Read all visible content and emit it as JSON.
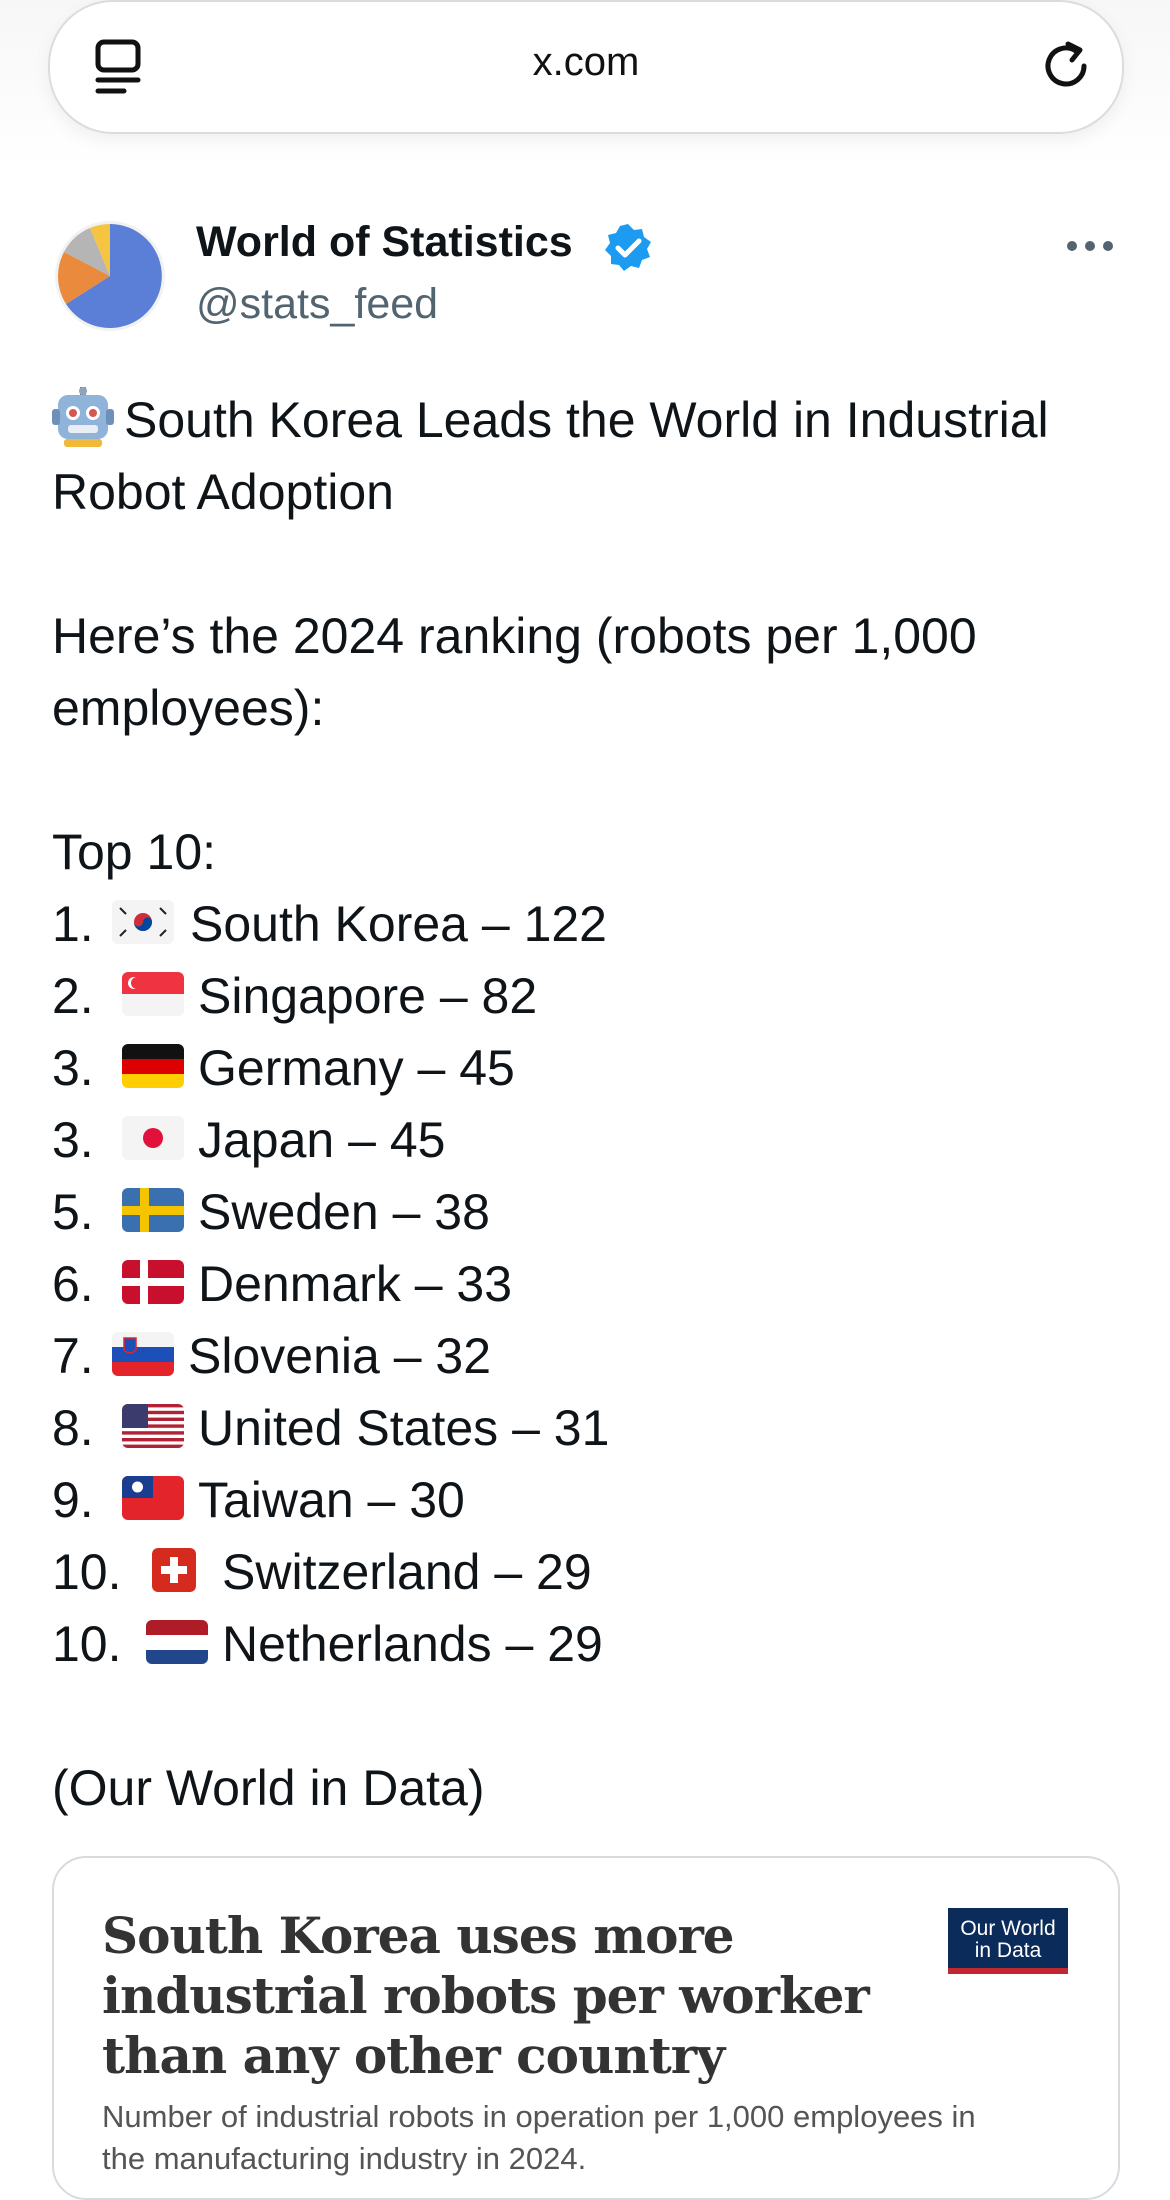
{
  "browser": {
    "url": "x.com"
  },
  "tweet": {
    "author_name": "World of Statistics",
    "handle": "@stats_feed",
    "headline_line1": "South Korea Leads the World in Industrial",
    "headline_line2": "Robot Adoption",
    "intro_line1": "Here’s the 2024 ranking (robots per 1,000",
    "intro_line2": "employees):",
    "list_title": "Top 10:",
    "ranking": [
      {
        "rank": "1.",
        "text": "South Korea – 122",
        "flag": "south-korea-flag"
      },
      {
        "rank": "2.",
        "text": "Singapore – 82",
        "flag": "singapore-flag"
      },
      {
        "rank": "3.",
        "text": "Germany – 45",
        "flag": "germany-flag"
      },
      {
        "rank": "3.",
        "text": "Japan – 45",
        "flag": "japan-flag"
      },
      {
        "rank": "5.",
        "text": "Sweden – 38",
        "flag": "sweden-flag"
      },
      {
        "rank": "6.",
        "text": "Denmark – 33",
        "flag": "denmark-flag"
      },
      {
        "rank": "7.",
        "text": "Slovenia – 32",
        "flag": "slovenia-flag"
      },
      {
        "rank": "8.",
        "text": "United States – 31",
        "flag": "usa-flag"
      },
      {
        "rank": "9.",
        "text": "Taiwan – 30",
        "flag": "taiwan-flag"
      },
      {
        "rank": "10.",
        "text": "Switzerland – 29",
        "flag": "switzerland-flag"
      },
      {
        "rank": "10.",
        "text": "Netherlands – 29",
        "flag": "netherlands-flag"
      }
    ],
    "source": "(Our World in Data)"
  },
  "card": {
    "title_line1": "South Korea uses more",
    "title_line2": "industrial robots per worker",
    "title_line3": "than any other country",
    "logo_line1": "Our World",
    "logo_line2": "in Data",
    "subtitle_line1": "Number of industrial robots in operation per 1,000 employees in",
    "subtitle_line2": "the manufacturing industry in 2024."
  },
  "colors": {
    "verified": "#1d9bf0",
    "handle": "#536471",
    "owid_navy": "#0b2b5a",
    "owid_red": "#c2262f"
  }
}
